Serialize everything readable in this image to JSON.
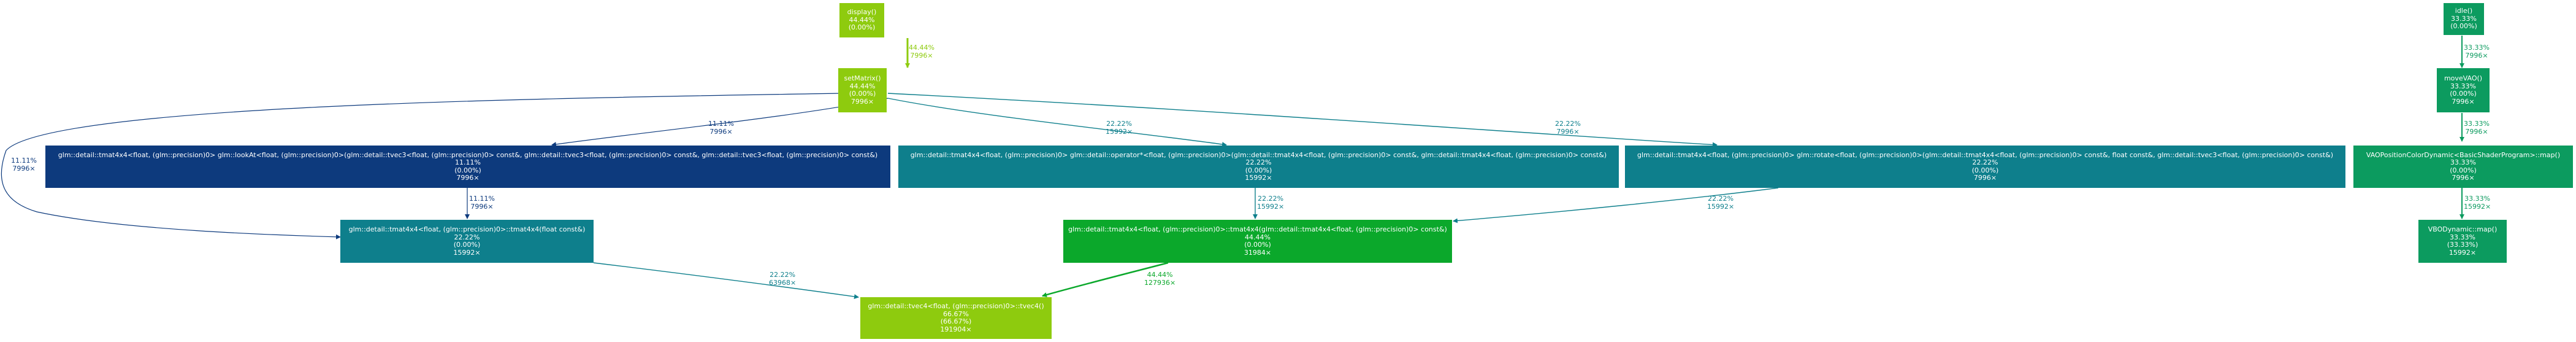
{
  "colors": {
    "light_green": "#8ecb0e",
    "dark_navy": "#0d3a7d",
    "teal": "#0e7f8c",
    "green": "#0ba82b",
    "sea_green": "#0c9b5f"
  },
  "nodes": {
    "display": {
      "name": "display()",
      "pct": "44.44%",
      "self": "(0.00%)",
      "calls": ""
    },
    "setMatrix": {
      "name": "setMatrix()",
      "pct": "44.44%",
      "self": "(0.00%)",
      "calls": "7996×"
    },
    "lookAt": {
      "name": "glm::detail::tmat4x4<float, (glm::precision)0> glm::lookAt<float, (glm::precision)0>(glm::detail::tvec3<float, (glm::precision)0> const&, glm::detail::tvec3<float, (glm::precision)0> const&, glm::detail::tvec3<float, (glm::precision)0> const&)",
      "pct": "11.11%",
      "self": "(0.00%)",
      "calls": "7996×"
    },
    "operator_mul": {
      "name": "glm::detail::tmat4x4<float, (glm::precision)0> glm::detail::operator*<float, (glm::precision)0>(glm::detail::tmat4x4<float, (glm::precision)0> const&, glm::detail::tmat4x4<float, (glm::precision)0> const&)",
      "pct": "22.22%",
      "self": "(0.00%)",
      "calls": "15992×"
    },
    "rotate": {
      "name": "glm::detail::tmat4x4<float, (glm::precision)0> glm::rotate<float, (glm::precision)0>(glm::detail::tmat4x4<float, (glm::precision)0> const&, float const&, glm::detail::tvec3<float, (glm::precision)0> const&)",
      "pct": "22.22%",
      "self": "(0.00%)",
      "calls": "7996×"
    },
    "tmat_copy": {
      "name": "glm::detail::tmat4x4<float, (glm::precision)0>::tmat4x4(float const&)",
      "pct": "22.22%",
      "self": "(0.00%)",
      "calls": "15992×"
    },
    "tmat_ctor": {
      "name": "glm::detail::tmat4x4<float, (glm::precision)0>::tmat4x4(glm::detail::tmat4x4<float, (glm::precision)0> const&)",
      "pct": "44.44%",
      "self": "(0.00%)",
      "calls": "31984×"
    },
    "tvec4": {
      "name": "glm::detail::tvec4<float, (glm::precision)0>::tvec4()",
      "pct": "66.67%",
      "self": "(66.67%)",
      "calls": "191904×"
    },
    "idle": {
      "name": "idle()",
      "pct": "33.33%",
      "self": "(0.00%)",
      "calls": ""
    },
    "moveVAO": {
      "name": "moveVAO()",
      "pct": "33.33%",
      "self": "(0.00%)",
      "calls": "7996×"
    },
    "vaoMap": {
      "name": "VAOPositionColorDynamic<BasicShaderProgram>::map()",
      "pct": "33.33%",
      "self": "(0.00%)",
      "calls": "7996×"
    },
    "vboMap": {
      "name": "VBODynamic::map()",
      "pct": "33.33%",
      "self": "(33.33%)",
      "calls": "15992×"
    }
  },
  "edges": {
    "display_setMatrix": {
      "pct": "44.44%",
      "calls": "7996×"
    },
    "setMatrix_lookAt": {
      "pct": "11.11%",
      "calls": "7996×"
    },
    "setMatrix_operator": {
      "pct": "22.22%",
      "calls": "15992×"
    },
    "setMatrix_rotate": {
      "pct": "22.22%",
      "calls": "7996×"
    },
    "setMatrix_tmatcopy": {
      "pct": "11.11%",
      "calls": "7996×"
    },
    "lookAt_tmatcopy": {
      "pct": "11.11%",
      "calls": "7996×"
    },
    "operator_tmatctor": {
      "pct": "22.22%",
      "calls": "15992×"
    },
    "rotate_tmatctor": {
      "pct": "22.22%",
      "calls": "15992×"
    },
    "tmatcopy_tvec4": {
      "pct": "22.22%",
      "calls": "63968×"
    },
    "tmatctor_tvec4": {
      "pct": "44.44%",
      "calls": "127936×"
    },
    "idle_moveVAO": {
      "pct": "33.33%",
      "calls": "7996×"
    },
    "moveVAO_vaoMap": {
      "pct": "33.33%",
      "calls": "7996×"
    },
    "vaoMap_vboMap": {
      "pct": "33.33%",
      "calls": "15992×"
    }
  }
}
